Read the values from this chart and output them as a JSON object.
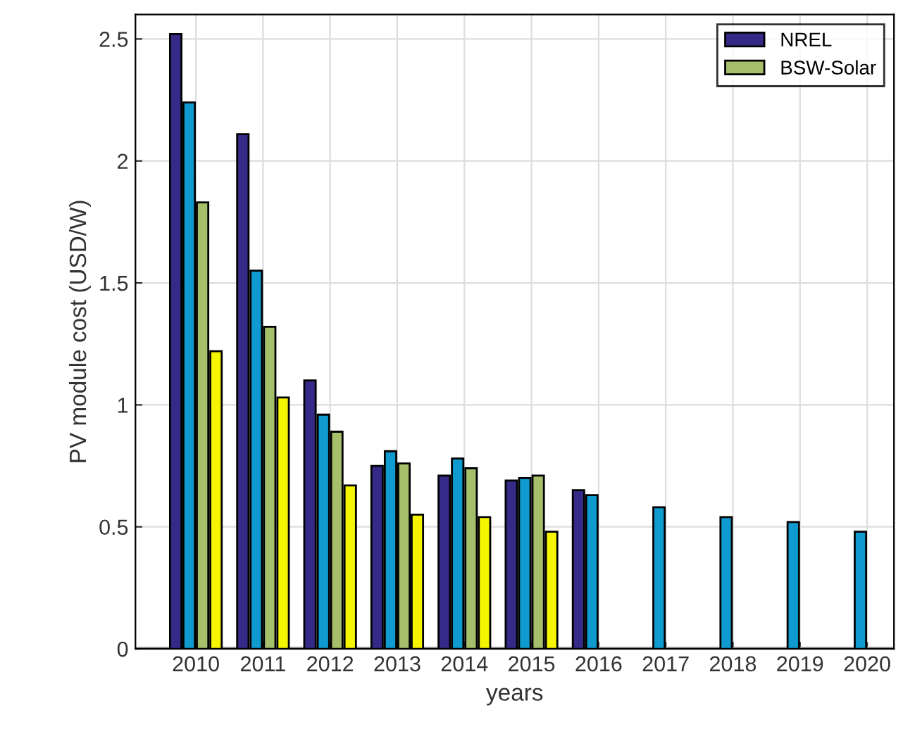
{
  "chart_data": {
    "type": "bar",
    "xlabel": "years",
    "ylabel": "PV module cost (USD/W)",
    "categories": [
      "2010",
      "2011",
      "2012",
      "2013",
      "2014",
      "2015",
      "2016",
      "2017",
      "2018",
      "2019",
      "2020"
    ],
    "series": [
      {
        "name": "NREL",
        "color": "#352a87",
        "values": [
          2.52,
          2.11,
          1.1,
          0.75,
          0.71,
          0.69,
          0.65,
          null,
          null,
          null,
          null
        ]
      },
      {
        "color": "#0f9bd0",
        "values": [
          2.24,
          1.55,
          0.96,
          0.81,
          0.78,
          0.7,
          0.63,
          0.58,
          0.54,
          0.52,
          0.48
        ]
      },
      {
        "name": "BSW-Solar",
        "color": "#a5bf6b",
        "values": [
          1.83,
          1.32,
          0.89,
          0.76,
          0.74,
          0.71,
          null,
          null,
          null,
          null,
          null
        ]
      },
      {
        "color": "#f5f500",
        "values": [
          1.22,
          1.03,
          0.67,
          0.55,
          0.54,
          0.48,
          null,
          null,
          null,
          null,
          null
        ]
      }
    ],
    "ylim": [
      0,
      2.6
    ],
    "yticks": [
      0,
      0.5,
      1,
      1.5,
      2,
      2.5
    ],
    "grid": true,
    "legend": "top right"
  }
}
